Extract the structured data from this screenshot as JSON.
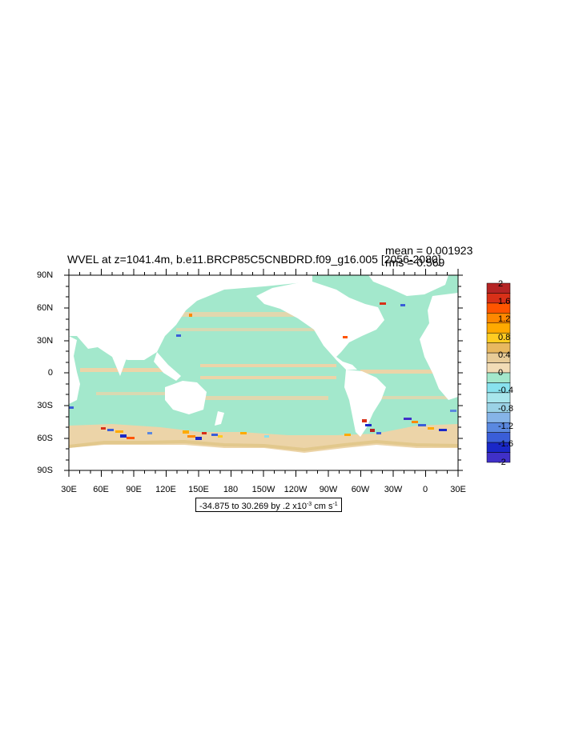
{
  "title": "WVEL at z=1041.4m, b.e11.BRCP85C5CNBDRD.f09_g16.005 [2056-2080]",
  "stats": {
    "mean": "mean = 0.001923",
    "rms": "rms = 0.569"
  },
  "lat_labels": [
    "90N",
    "60N",
    "30N",
    "0",
    "30S",
    "60S",
    "90S"
  ],
  "lon_labels": [
    "30E",
    "60E",
    "90E",
    "120E",
    "150E",
    "180",
    "150W",
    "120W",
    "90W",
    "60W",
    "30W",
    "0",
    "30E"
  ],
  "colorbar": {
    "labels": [
      "2",
      "1.6",
      "1.2",
      "0.8",
      "0.4",
      "0",
      "-0.4",
      "-0.8",
      "-1.2",
      "-1.6",
      "-2"
    ],
    "colors": [
      "#b52424",
      "#d83018",
      "#ff5500",
      "#ff8800",
      "#ffaa00",
      "#ffcc22",
      "#e8b860",
      "#e8cc98",
      "#f2dcb6",
      "#a3e8cc",
      "#88e2ee",
      "#a8e6ec",
      "#9ad2e6",
      "#86b4e8",
      "#5a88e0",
      "#3a5ed8",
      "#1a28c8",
      "#4030c8"
    ]
  },
  "range": {
    "prefix": "-34.875 to 30.269 by .2 x10",
    "exp": "-3",
    "unit": " cm s",
    "unit_exp": "-1"
  },
  "colors": {
    "ocean": "#a3e8cc",
    "warm": "#ecd4a8",
    "land": "#ffffff"
  }
}
